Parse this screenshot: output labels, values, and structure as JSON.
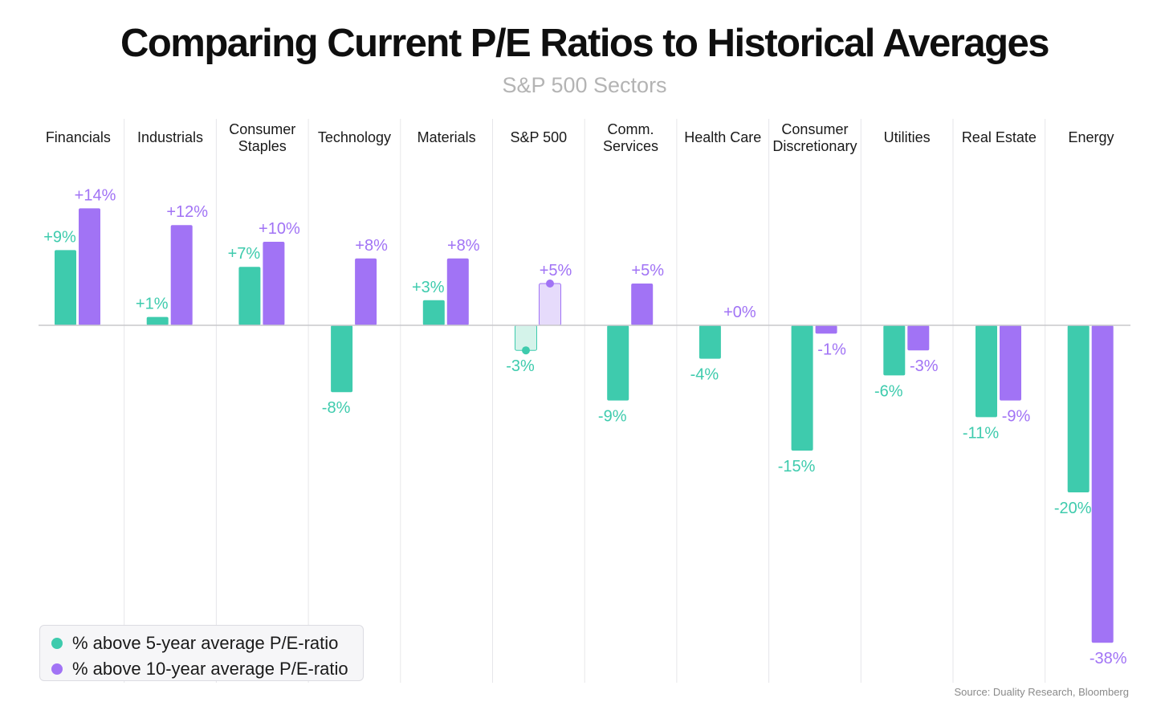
{
  "colors": {
    "five_year": "#3ecbad",
    "ten_year": "#a173f5"
  },
  "chart_data": {
    "type": "bar",
    "title": "Comparing Current P/E Ratios to Historical Averages",
    "subtitle": "S&P 500 Sectors",
    "categories": [
      [
        "Financials"
      ],
      [
        "Industrials"
      ],
      [
        "Consumer",
        "Staples"
      ],
      [
        "Technology"
      ],
      [
        "Materials"
      ],
      [
        "S&P 500"
      ],
      [
        "Comm.",
        "Services"
      ],
      [
        "Health Care"
      ],
      [
        "Consumer",
        "Discretionary"
      ],
      [
        "Utilities"
      ],
      [
        "Real Estate"
      ],
      [
        "Energy"
      ]
    ],
    "series": [
      {
        "name": "% above 5-year average P/E-ratio",
        "values": [
          9,
          1,
          7,
          -8,
          3,
          -3,
          -9,
          -4,
          -15,
          -6,
          -11,
          -20
        ],
        "labels": [
          "+9%",
          "+1%",
          "+7%",
          "-8%",
          "+3%",
          "-3%",
          "-9%",
          "-4%",
          "-15%",
          "-6%",
          "-11%",
          "-20%"
        ]
      },
      {
        "name": "% above 10-year average P/E-ratio",
        "values": [
          14,
          12,
          10,
          8,
          8,
          5,
          5,
          0,
          -1,
          -3,
          -9,
          -38
        ],
        "labels": [
          "+14%",
          "+12%",
          "+10%",
          "+8%",
          "+8%",
          "+5%",
          "+5%",
          "+0%",
          "-1%",
          "-3%",
          "-9%",
          "-38%"
        ]
      }
    ],
    "highlight_category": "S&P 500",
    "grid": "vertical separators between categories",
    "legend_position": "bottom-left"
  },
  "legend": {
    "five_year": "% above 5-year average P/E-ratio",
    "ten_year": "% above 10-year average P/E-ratio"
  },
  "source": "Source: Duality Research, Bloomberg"
}
